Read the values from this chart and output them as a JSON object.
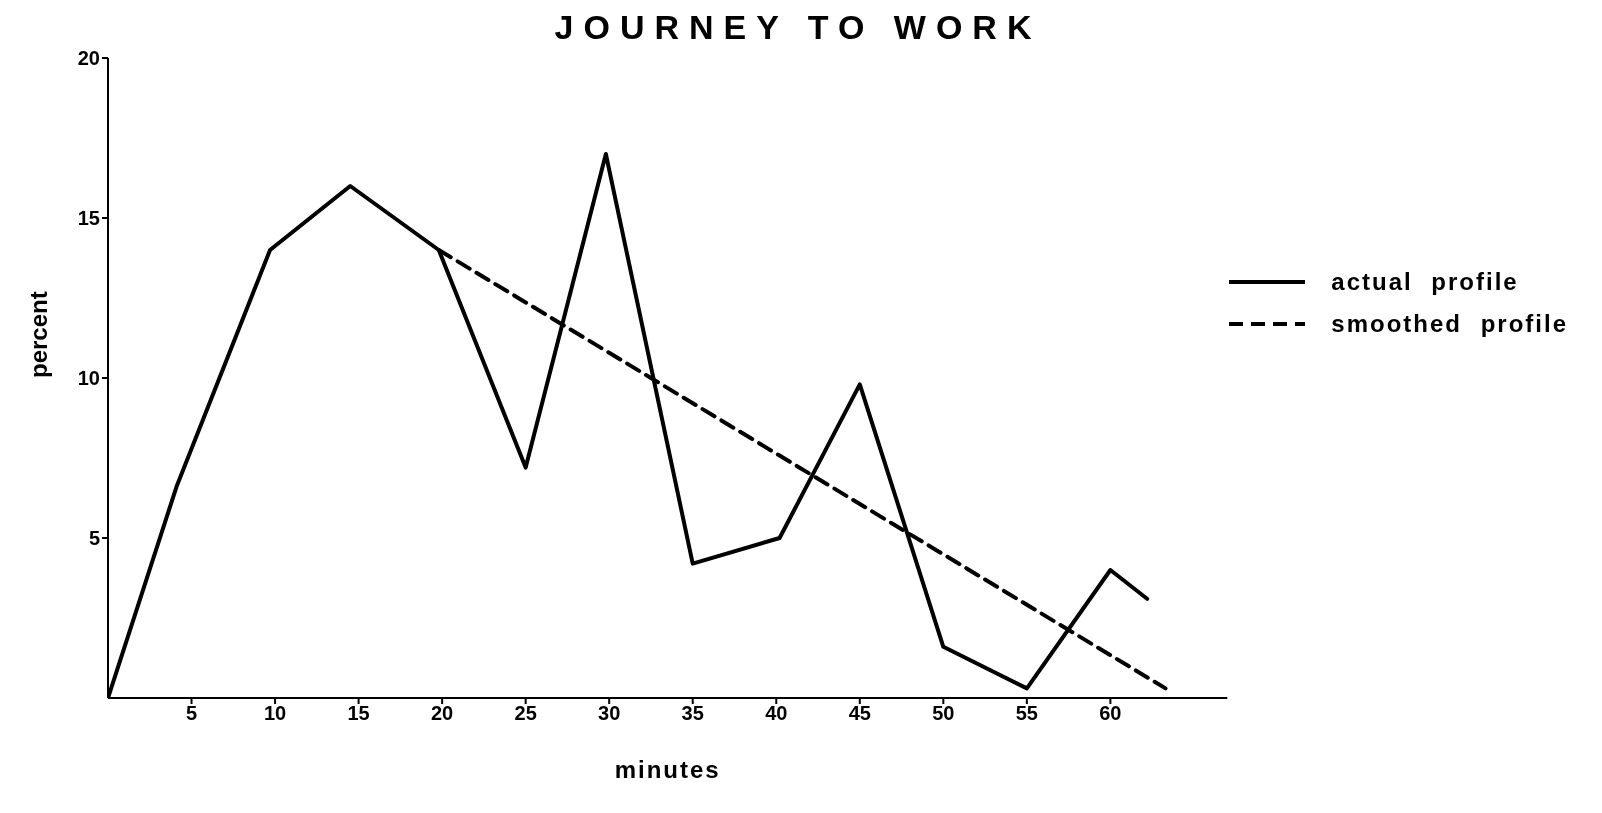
{
  "chart_data": {
    "type": "line",
    "title": "JOURNEY TO WORK",
    "xlabel": "minutes",
    "ylabel": "percent",
    "xlim": [
      0,
      67
    ],
    "xticks": [
      5,
      10,
      15,
      20,
      25,
      30,
      35,
      40,
      45,
      50,
      55,
      60
    ],
    "ylim": [
      0,
      20
    ],
    "yticks": [
      5,
      10,
      15,
      20
    ],
    "legend": "right",
    "marker": "none",
    "series": [
      {
        "name": "actual profile",
        "color": "#000000",
        "line_style": "solid",
        "x": [
          0,
          4.1,
          9.7,
          14.5,
          19.8,
          25,
          29.8,
          35,
          40.2,
          45,
          50,
          55,
          60,
          62.2
        ],
        "values": [
          0,
          6.6,
          14,
          16,
          14,
          7.2,
          17,
          4.2,
          5,
          9.8,
          1.6,
          0.3,
          4,
          3.1
        ]
      },
      {
        "name": "smoothed profile",
        "color": "#000000",
        "line_style": "dashed",
        "x": [
          19.8,
          63.3
        ],
        "values": [
          14,
          0.3
        ]
      }
    ]
  }
}
